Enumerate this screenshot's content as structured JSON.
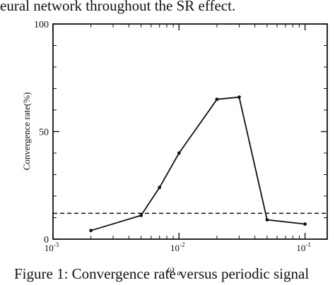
{
  "document": {
    "top_text": "eural network throughout the SR effect.",
    "caption": "Figure 1: Convergence rate versus periodic signal"
  },
  "chart_data": {
    "type": "line",
    "xlabel": "ω",
    "xlabel_subscript": "a",
    "ylabel": "Convergence rate(%)",
    "x_scale": "log",
    "xlim": [
      0.001,
      0.15
    ],
    "ylim": [
      0,
      100
    ],
    "x_ticks": [
      {
        "value": 0.001,
        "base": "10",
        "exp": "-3"
      },
      {
        "value": 0.01,
        "base": "10",
        "exp": "-2"
      },
      {
        "value": 0.1,
        "base": "10",
        "exp": "-1"
      }
    ],
    "y_ticks": [
      {
        "value": 0,
        "label": "0"
      },
      {
        "value": 50,
        "label": "50"
      },
      {
        "value": 100,
        "label": "100"
      }
    ],
    "grid": false,
    "legend": "none",
    "series": [
      {
        "style": "solid-with-markers",
        "color": "#111111",
        "points": [
          {
            "x": 0.002,
            "y": 4
          },
          {
            "x": 0.005,
            "y": 11
          },
          {
            "x": 0.007,
            "y": 24
          },
          {
            "x": 0.01,
            "y": 40
          },
          {
            "x": 0.02,
            "y": 65
          },
          {
            "x": 0.03,
            "y": 66
          },
          {
            "x": 0.05,
            "y": 9
          },
          {
            "x": 0.1,
            "y": 7
          }
        ]
      }
    ],
    "reference_line": {
      "style": "dashed",
      "y": 12
    }
  }
}
